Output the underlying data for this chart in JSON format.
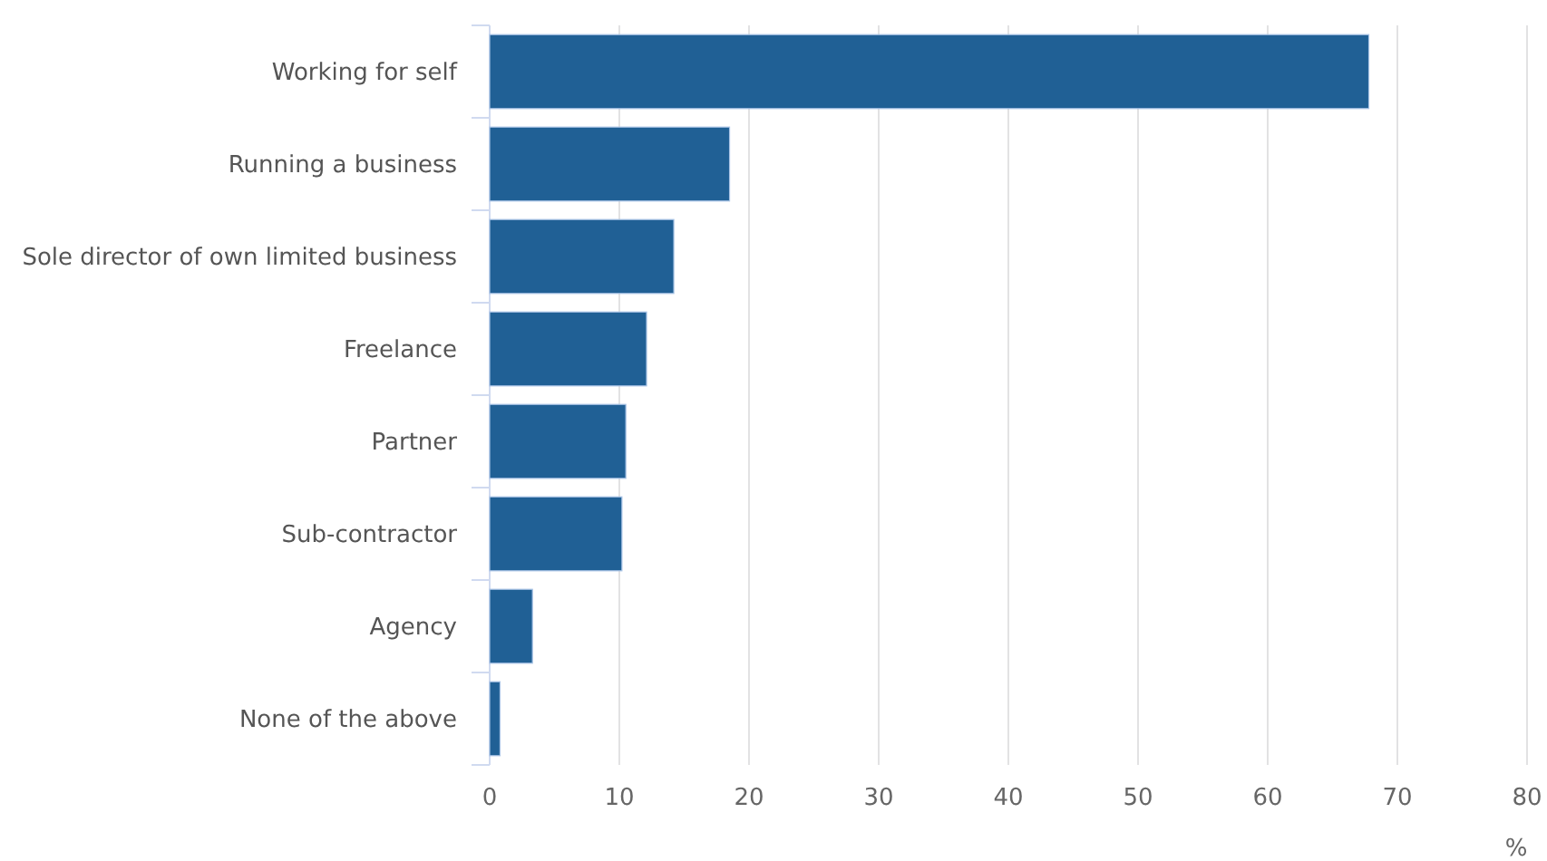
{
  "chart_data": {
    "type": "bar",
    "orientation": "horizontal",
    "xlabel": "%",
    "categories": [
      "Working for self",
      "Running a business",
      "Sole director of own limited business",
      "Freelance",
      "Partner",
      "Sub-contractor",
      "Agency",
      "None of the above"
    ],
    "values": [
      67.8,
      18.5,
      14.2,
      12.1,
      10.5,
      10.2,
      3.3,
      0.8
    ],
    "color": "#206095",
    "xlim": [
      0,
      80
    ],
    "xticks": [
      0,
      10,
      20,
      30,
      40,
      50,
      60,
      70,
      80
    ],
    "grid": "x"
  }
}
